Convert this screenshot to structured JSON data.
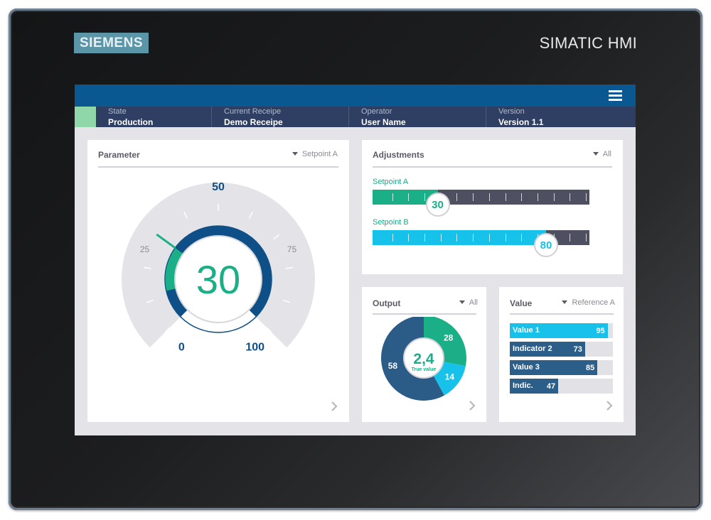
{
  "device": {
    "brand": "SIEMENS",
    "model": "SIMATIC HMI"
  },
  "status": [
    {
      "label": "State",
      "value": "Production"
    },
    {
      "label": "Current Receipe",
      "value": "Demo Receipe"
    },
    {
      "label": "Operator",
      "value": "User Name"
    },
    {
      "label": "Version",
      "value": "Version 1.1"
    }
  ],
  "colors": {
    "topbar": "#0a5891",
    "statusbar": "#2e3f63",
    "green": "#1aaf87",
    "cyan": "#17c2ea",
    "navy": "#0d4f86",
    "steel": "#2c5e8a",
    "state_led": "#8fd6a8"
  },
  "parameter": {
    "title": "Parameter",
    "filter": "Setpoint A",
    "value": 30,
    "display": "30",
    "scale": {
      "min": 0,
      "max": 100,
      "ticks": [
        "0",
        "25",
        "50",
        "75",
        "100"
      ]
    }
  },
  "adjustments": {
    "title": "Adjustments",
    "filter": "All",
    "setpoints": [
      {
        "label": "Setpoint A",
        "value": 30,
        "display": "30"
      },
      {
        "label": "Setpoint B",
        "value": 80,
        "display": "80"
      }
    ]
  },
  "output": {
    "title": "Output",
    "filter": "All",
    "center_value": "2,4",
    "center_caption": "True value",
    "slices": [
      {
        "value": 28,
        "label": "28",
        "color": "#1aaf87"
      },
      {
        "value": 14,
        "label": "14",
        "color": "#17c2ea"
      },
      {
        "value": 58,
        "label": "58",
        "color": "#2b5c88"
      }
    ]
  },
  "value_panel": {
    "title": "Value",
    "filter": "Reference A",
    "rows": [
      {
        "name": "Value 1",
        "value": 95,
        "display": "95",
        "color": "#17c2ea"
      },
      {
        "name": "Indicator 2",
        "value": 73,
        "display": "73",
        "color": "#2c5e8a"
      },
      {
        "name": "Value 3",
        "value": 85,
        "display": "85",
        "color": "#2c5e8a"
      },
      {
        "name": "Indic.",
        "value": 47,
        "display": "47",
        "color": "#2c5e8a"
      }
    ]
  }
}
